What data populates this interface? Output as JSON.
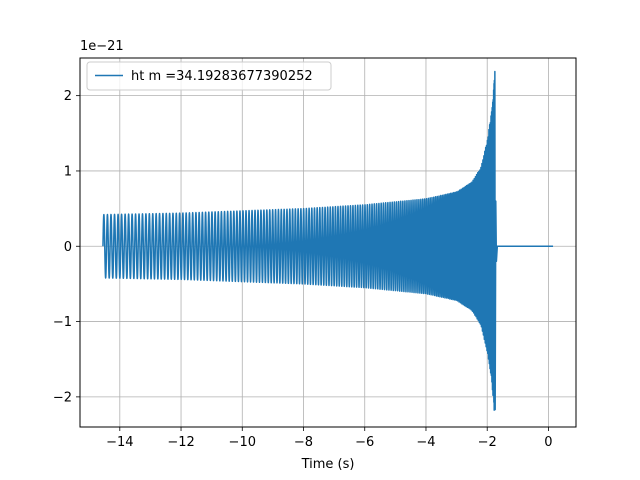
{
  "chart_data": {
    "type": "line",
    "title": "",
    "xlabel": "Time (s)",
    "ylabel": "",
    "offset_text": "1e−21",
    "xlim": [
      -15.3,
      0.9
    ],
    "ylim": [
      -2.4,
      2.5
    ],
    "grid": true,
    "legend_position": "upper-left",
    "x_ticks": [
      -14,
      -12,
      -10,
      -8,
      -6,
      -4,
      -2,
      0
    ],
    "x_tick_labels": [
      "−14",
      "−12",
      "−10",
      "−8",
      "−6",
      "−4",
      "−2",
      "0"
    ],
    "y_ticks": [
      -2,
      -1,
      0,
      1,
      2
    ],
    "y_tick_labels": [
      "−2",
      "−1",
      "0",
      "1",
      "2"
    ],
    "series": [
      {
        "name": "ht m =34.19283677390252",
        "color": "#1f77b4",
        "waveform": {
          "kind": "chirp",
          "t_start": -14.55,
          "t_merger": -1.75,
          "t_end": 0.15,
          "amplitude_start": 0.42,
          "peak_max": 2.32,
          "peak_min": -2.17,
          "envelope_points": [
            {
              "t": -14.55,
              "amp": 0.42
            },
            {
              "t": -12,
              "amp": 0.44
            },
            {
              "t": -10,
              "amp": 0.47
            },
            {
              "t": -8,
              "amp": 0.5
            },
            {
              "t": -6,
              "amp": 0.55
            },
            {
              "t": -4,
              "amp": 0.63
            },
            {
              "t": -3,
              "amp": 0.72
            },
            {
              "t": -2.5,
              "amp": 0.85
            },
            {
              "t": -2.2,
              "amp": 1.05
            },
            {
              "t": -2.0,
              "amp": 1.4
            },
            {
              "t": -1.85,
              "amp": 1.8
            },
            {
              "t": -1.75,
              "amp": 2.3
            }
          ]
        }
      }
    ]
  }
}
